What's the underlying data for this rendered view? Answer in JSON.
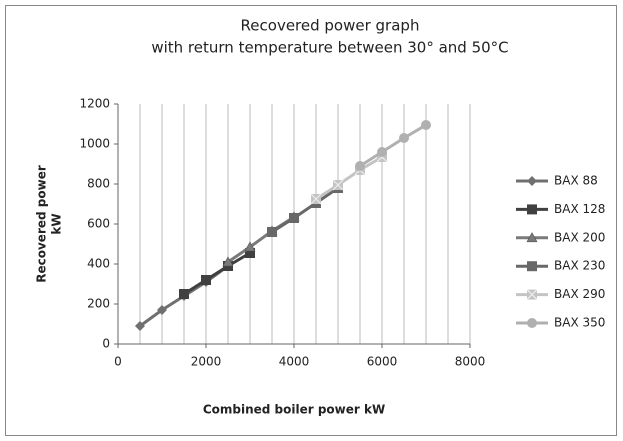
{
  "chart_data": {
    "type": "line",
    "title": [
      "Recovered power graph",
      "with return temperature between 30° and 50°C"
    ],
    "ylabel": [
      "Recovered power",
      "kW"
    ],
    "xlabel": "Combined boiler power kW",
    "xlim": [
      0,
      8000
    ],
    "xticks": [
      0,
      2000,
      4000,
      6000,
      8000
    ],
    "ylim": [
      0,
      1200
    ],
    "yticks": [
      0,
      200,
      400,
      600,
      800,
      1000,
      1200
    ],
    "x_gridlines": [
      500,
      1000,
      1500,
      2000,
      2500,
      3000,
      3500,
      4000,
      4500,
      5000,
      5500,
      6000,
      6500,
      7000,
      7500,
      8000
    ],
    "legend": "right",
    "series": [
      {
        "name": "BAX 88",
        "color": "#707070",
        "marker": "diamond",
        "x": [
          500,
          1000,
          1500,
          2000,
          2500
        ],
        "values": [
          90,
          170,
          240,
          310,
          390
        ]
      },
      {
        "name": "BAX 128",
        "color": "#404040",
        "marker": "square",
        "x": [
          1500,
          2000,
          2500,
          3000
        ],
        "values": [
          250,
          320,
          390,
          455
        ]
      },
      {
        "name": "BAX 200",
        "color": "#7a7a7a",
        "marker": "triangle",
        "x": [
          2500,
          3000,
          3500,
          4000
        ],
        "values": [
          410,
          485,
          565,
          635
        ]
      },
      {
        "name": "BAX 230",
        "color": "#686868",
        "marker": "square",
        "x": [
          3500,
          4000,
          4500,
          5000
        ],
        "values": [
          560,
          630,
          705,
          780
        ]
      },
      {
        "name": "BAX 290",
        "color": "#c4c4c4",
        "marker": "xsquare",
        "x": [
          4500,
          5000,
          5500,
          6000
        ],
        "values": [
          725,
          795,
          870,
          935
        ]
      },
      {
        "name": "BAX 350",
        "color": "#b0b0b0",
        "marker": "circle",
        "x": [
          5500,
          6000,
          6500,
          7000
        ],
        "values": [
          890,
          960,
          1030,
          1095
        ]
      }
    ]
  }
}
